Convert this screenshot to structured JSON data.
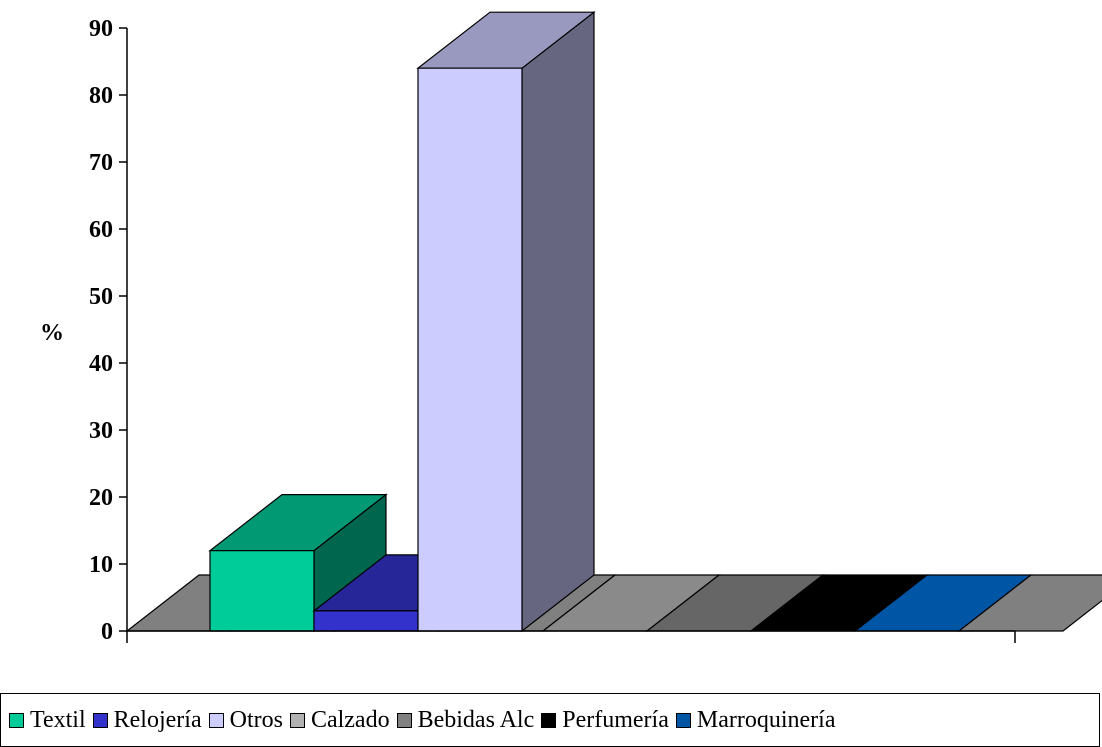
{
  "chart_data": {
    "type": "bar",
    "style": "3d",
    "ylabel": "%",
    "ylim": [
      0,
      90
    ],
    "yticks": [
      "0",
      "10",
      "20",
      "30",
      "40",
      "50",
      "60",
      "70",
      "80",
      "90"
    ],
    "grid": false,
    "legend_position": "bottom",
    "series": [
      {
        "name": "Textil",
        "value": 12,
        "color": "#00CC99"
      },
      {
        "name": "Relojería",
        "value": 3,
        "color": "#3333CC"
      },
      {
        "name": "Otros",
        "value": 84,
        "color": "#CCCCFF"
      },
      {
        "name": "Calzado",
        "value": 0,
        "color": "#B2B2B2"
      },
      {
        "name": "Bebidas Alc",
        "value": 0,
        "color": "#808080"
      },
      {
        "name": "Perfumería",
        "value": 0,
        "color": "#000000"
      },
      {
        "name": "Marroquinería",
        "value": 0,
        "color": "#0055A5"
      }
    ]
  }
}
